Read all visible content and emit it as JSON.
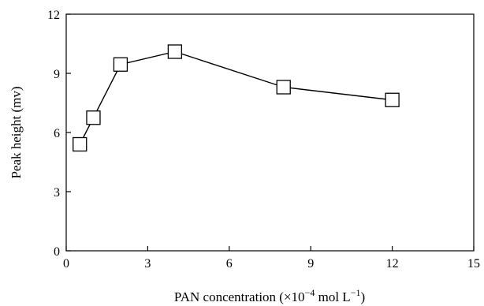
{
  "chart_data": {
    "type": "scatter",
    "title": "",
    "xlabel_prefix": "PAN concentration (×10",
    "xlabel_exp1": "−4",
    "xlabel_mid": " mol L",
    "xlabel_exp2": "−1",
    "xlabel_suffix": ")",
    "ylabel": "Peak height (mv)",
    "xlim": [
      0,
      15
    ],
    "ylim": [
      0,
      12
    ],
    "xticks": [
      0,
      3,
      6,
      9,
      12,
      15
    ],
    "yticks": [
      0,
      3,
      6,
      9,
      12
    ],
    "grid": false,
    "marker": "open-square",
    "connected": true,
    "series": [
      {
        "x": [
          0.5,
          1.0,
          2.0,
          4.0,
          8.0,
          12.0
        ],
        "y": [
          5.4,
          6.75,
          9.45,
          10.1,
          8.3,
          7.65
        ]
      }
    ]
  }
}
